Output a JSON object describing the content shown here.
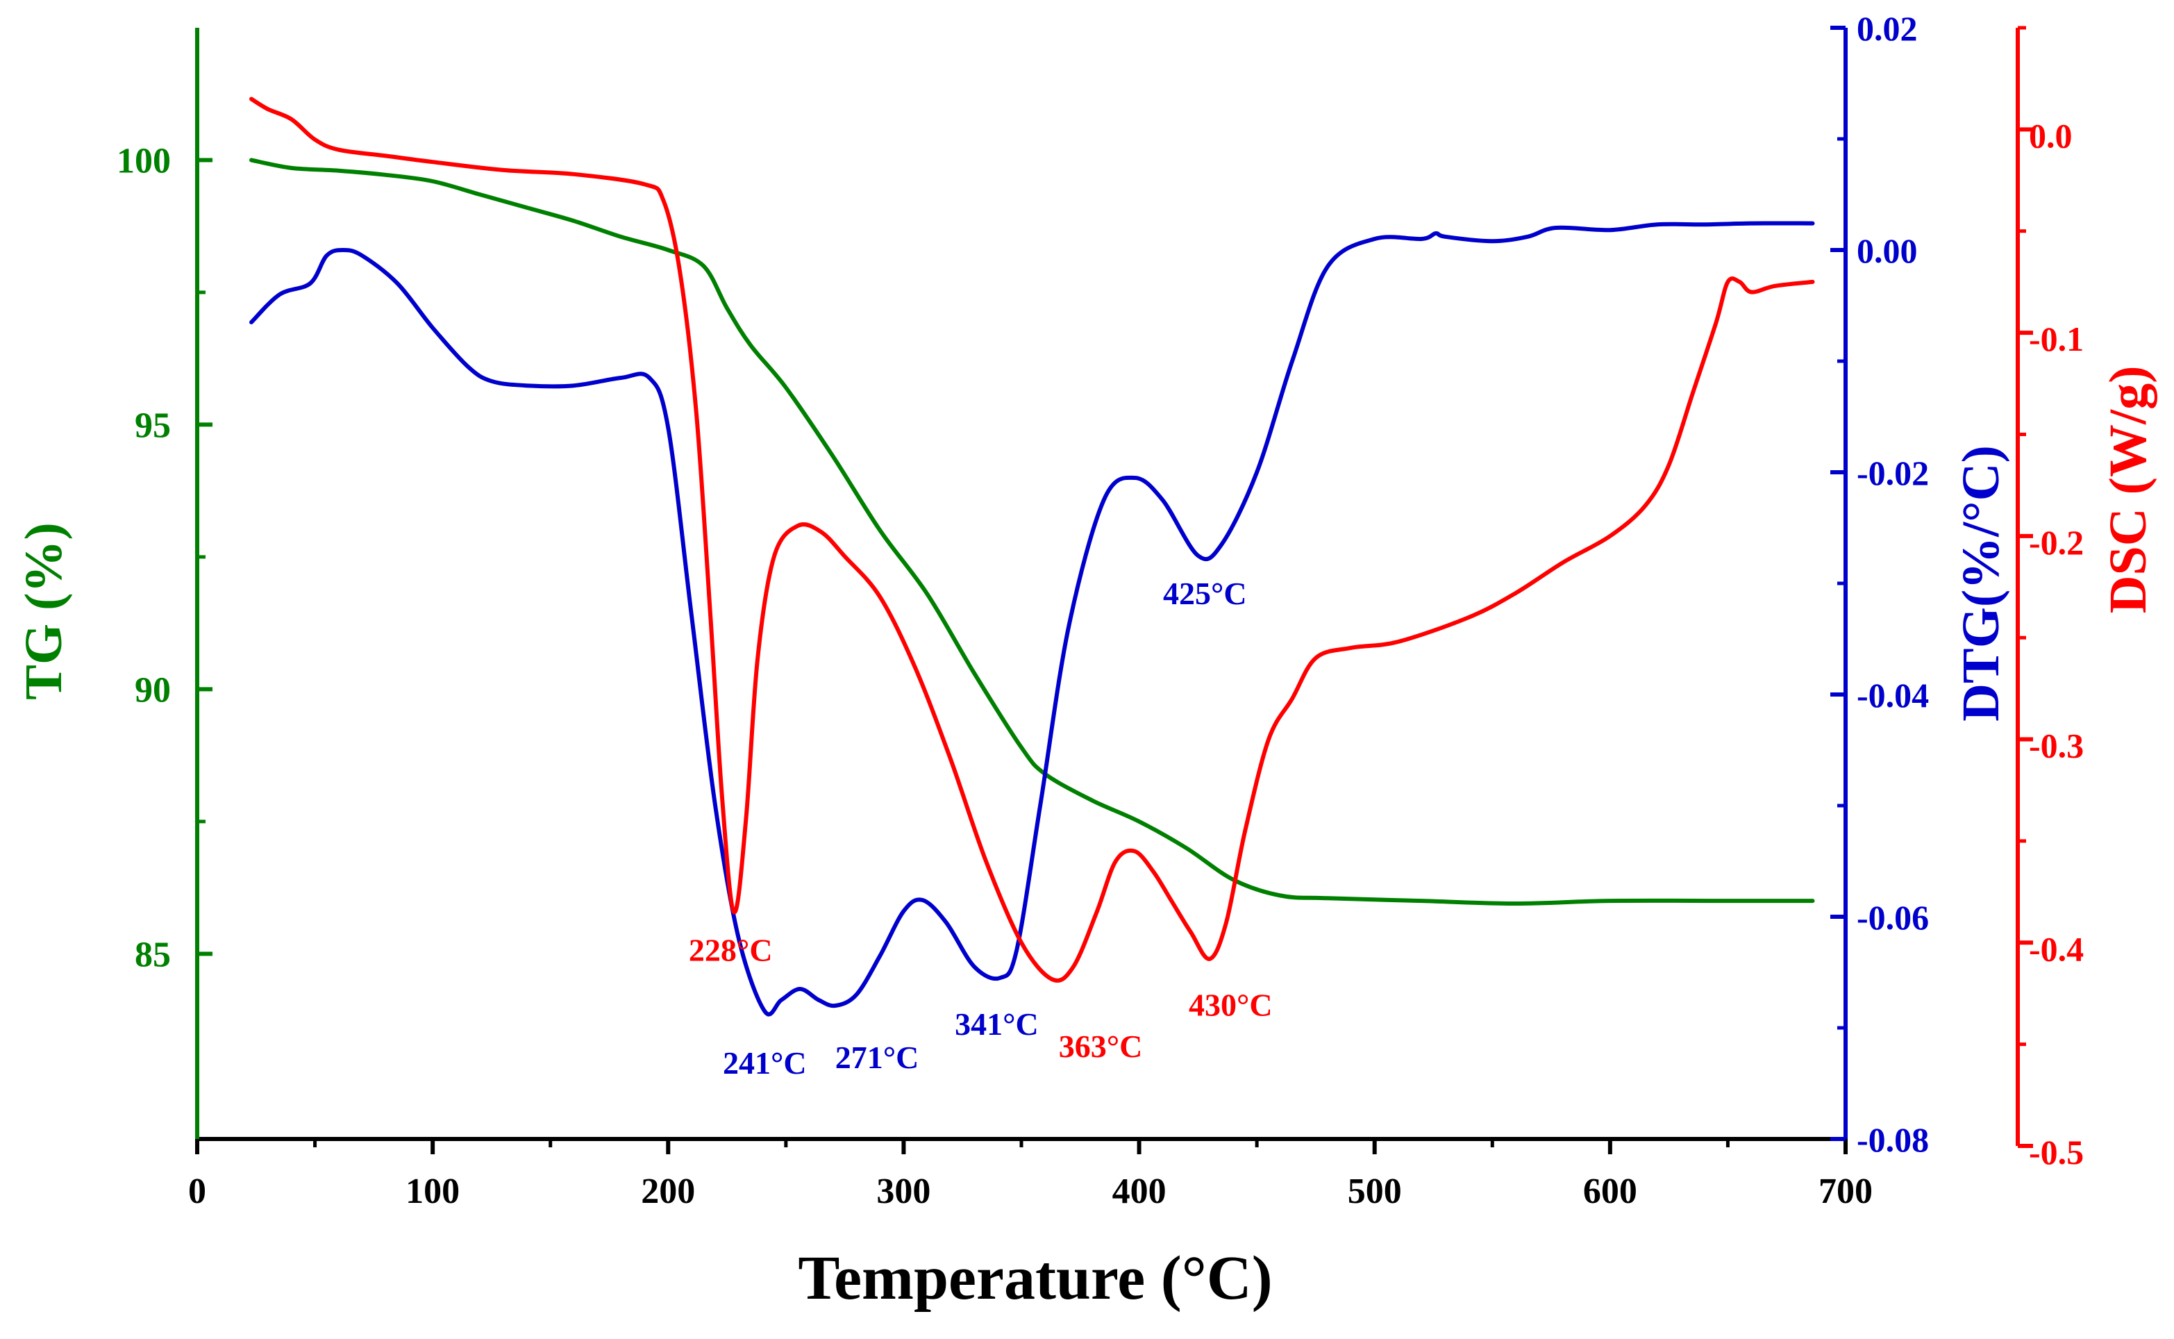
{
  "chart_data": {
    "type": "line",
    "title": "",
    "xlabel": "Temperature (°C)",
    "xlim": [
      0,
      700
    ],
    "xticks": [
      0,
      100,
      200,
      300,
      400,
      500,
      600,
      700
    ],
    "axes": {
      "tg": {
        "label": "TG (%)",
        "color": "#008000",
        "range": [
          81.5,
          102.5
        ],
        "ticks": [
          85,
          90,
          95,
          100
        ]
      },
      "dtg": {
        "label": "DTG(%/°C)",
        "color": "#0000CD",
        "range": [
          -0.08,
          0.02
        ],
        "ticks": [
          0.02,
          0.0,
          -0.02,
          -0.04,
          -0.06,
          -0.08
        ],
        "tick_labels": [
          "0.02",
          "0.00",
          "-0.02",
          "-0.04",
          "-0.06",
          "-0.08"
        ]
      },
      "dsc": {
        "label": "DSC (W/g)",
        "color": "#FF0000",
        "range": [
          -0.5,
          0.05
        ],
        "ticks": [
          0.0,
          -0.1,
          -0.2,
          -0.3,
          -0.4,
          -0.5
        ],
        "tick_labels": [
          "0.0",
          "-0.1",
          "-0.2",
          "-0.3",
          "-0.4",
          "-0.5"
        ]
      }
    },
    "series": [
      {
        "name": "TG",
        "axis": "tg",
        "x": [
          23,
          40,
          60,
          80,
          100,
          120,
          140,
          160,
          180,
          200,
          215,
          225,
          235,
          250,
          270,
          290,
          310,
          330,
          350,
          360,
          380,
          400,
          420,
          440,
          460,
          480,
          520,
          560,
          600,
          650,
          686
        ],
        "y": [
          100.0,
          99.85,
          99.8,
          99.72,
          99.6,
          99.35,
          99.1,
          98.85,
          98.55,
          98.3,
          98.0,
          97.2,
          96.5,
          95.7,
          94.4,
          93.0,
          91.8,
          90.3,
          88.9,
          88.4,
          87.9,
          87.5,
          87.0,
          86.4,
          86.1,
          86.05,
          86.0,
          85.95,
          86.0,
          86.0,
          86.0
        ]
      },
      {
        "name": "DTG",
        "axis": "dtg",
        "x": [
          23,
          35,
          48,
          55,
          62,
          70,
          85,
          100,
          115,
          125,
          140,
          160,
          180,
          192,
          200,
          210,
          220,
          230,
          241,
          248,
          256,
          264,
          271,
          280,
          290,
          300,
          308,
          318,
          330,
          341,
          348,
          358,
          370,
          385,
          398,
          410,
          425,
          435,
          450,
          465,
          480,
          500,
          520,
          526,
          530,
          550,
          565,
          577,
          600,
          620,
          640,
          660,
          686
        ],
        "y": [
          -0.0065,
          -0.004,
          -0.003,
          -0.0005,
          0.0,
          -0.0005,
          -0.003,
          -0.007,
          -0.0105,
          -0.0118,
          -0.0122,
          -0.0122,
          -0.0115,
          -0.0115,
          -0.016,
          -0.033,
          -0.05,
          -0.062,
          -0.0685,
          -0.0675,
          -0.0665,
          -0.0675,
          -0.068,
          -0.067,
          -0.0635,
          -0.0595,
          -0.0585,
          -0.0605,
          -0.0645,
          -0.0655,
          -0.063,
          -0.05,
          -0.034,
          -0.0225,
          -0.0205,
          -0.0225,
          -0.0275,
          -0.0265,
          -0.02,
          -0.01,
          -0.0015,
          0.001,
          0.001,
          0.0015,
          0.0012,
          0.0008,
          0.0012,
          0.002,
          0.0018,
          0.0023,
          0.0023,
          0.0024,
          0.0024
        ]
      },
      {
        "name": "DSC",
        "axis": "dsc",
        "x": [
          23,
          30,
          40,
          50,
          60,
          80,
          100,
          130,
          160,
          190,
          198,
          205,
          212,
          218,
          223,
          228,
          233,
          238,
          245,
          255,
          265,
          275,
          290,
          305,
          320,
          335,
          350,
          363,
          372,
          382,
          390,
          398,
          406,
          414,
          422,
          430,
          437,
          445,
          455,
          465,
          475,
          490,
          510,
          540,
          560,
          580,
          600,
          615,
          625,
          635,
          645,
          650,
          655,
          660,
          670,
          686
        ],
        "y": [
          0.015,
          0.01,
          0.005,
          -0.005,
          -0.01,
          -0.013,
          -0.016,
          -0.02,
          -0.022,
          -0.027,
          -0.035,
          -0.07,
          -0.14,
          -0.24,
          -0.33,
          -0.385,
          -0.34,
          -0.26,
          -0.21,
          -0.195,
          -0.198,
          -0.21,
          -0.23,
          -0.265,
          -0.31,
          -0.36,
          -0.4,
          -0.418,
          -0.412,
          -0.385,
          -0.36,
          -0.355,
          -0.365,
          -0.38,
          -0.395,
          -0.408,
          -0.39,
          -0.345,
          -0.3,
          -0.28,
          -0.26,
          -0.255,
          -0.252,
          -0.24,
          -0.228,
          -0.213,
          -0.2,
          -0.185,
          -0.165,
          -0.13,
          -0.095,
          -0.075,
          -0.075,
          -0.08,
          -0.077,
          -0.075
        ]
      }
    ],
    "annotations": [
      {
        "text": "228°C",
        "series": "DSC",
        "x": 228,
        "y": -0.385
      },
      {
        "text": "241°C",
        "series": "DTG",
        "x": 241,
        "y": -0.0685
      },
      {
        "text": "271°C",
        "series": "DTG",
        "x": 271,
        "y": -0.068
      },
      {
        "text": "341°C",
        "series": "DTG",
        "x": 341,
        "y": -0.0655
      },
      {
        "text": "363°C",
        "series": "DSC",
        "x": 363,
        "y": -0.418
      },
      {
        "text": "425°C",
        "series": "DTG",
        "x": 425,
        "y": -0.0275
      },
      {
        "text": "430°C",
        "series": "DSC",
        "x": 430,
        "y": -0.408
      }
    ]
  }
}
